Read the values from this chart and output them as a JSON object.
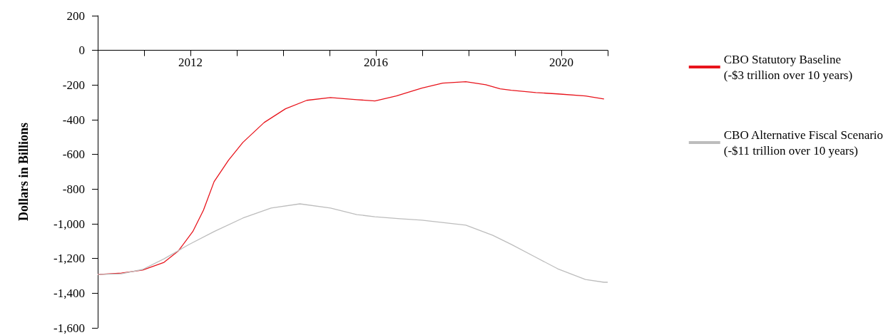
{
  "chart_data": {
    "type": "line",
    "ylabel": "Dollars in Billions",
    "xlim": [
      2010,
      2021
    ],
    "xticks": [
      {
        "value": 2010,
        "label": null
      },
      {
        "value": 2011,
        "label": null
      },
      2012,
      {
        "value": 2013,
        "label": null
      },
      {
        "value": 2014,
        "label": null
      },
      {
        "value": 2015,
        "label": null
      },
      2016,
      {
        "value": 2017,
        "label": null
      },
      {
        "value": 2018,
        "label": null
      },
      {
        "value": 2019,
        "label": null
      },
      2020,
      {
        "value": 2021,
        "label": null
      }
    ],
    "ylim": [
      -1600,
      200
    ],
    "yticks": [
      {
        "value": -1600,
        "label": "-1,600"
      },
      {
        "value": -1400,
        "label": "-1,400"
      },
      {
        "value": -1200,
        "label": "-1,200"
      },
      {
        "value": -1000,
        "label": "-1,000"
      },
      -800,
      -600,
      -400,
      -200,
      0,
      200
    ],
    "grid": false,
    "legend": "right",
    "marker": "none",
    "line_style": "solid",
    "series": [
      {
        "name": "CBO Statutory Baseline\n(-$3 trillion over 10 years)",
        "color": "#e8141c",
        "x": [
          2010.0,
          2010.51,
          2010.97,
          2011.43,
          2011.74,
          2012.05,
          2012.28,
          2012.51,
          2012.82,
          2013.13,
          2013.59,
          2014.05,
          2014.51,
          2015.02,
          2015.59,
          2015.98,
          2016.44,
          2016.99,
          2017.44,
          2017.94,
          2018.37,
          2018.68,
          2018.92,
          2019.45,
          2019.92,
          2020.52,
          2020.92
        ],
        "values": [
          -1292,
          -1284,
          -1267,
          -1222,
          -1156,
          -1045,
          -922,
          -757,
          -634,
          -531,
          -416,
          -337,
          -288,
          -272,
          -284,
          -292,
          -263,
          -218,
          -189,
          -181,
          -198,
          -222,
          -230,
          -243,
          -251,
          -263,
          -280
        ]
      },
      {
        "name": "CBO Alternative Fiscal Scenario\n(-$11 trillion over 10 years)",
        "color": "#bdbdbd",
        "x": [
          2010.0,
          2010.51,
          2010.97,
          2011.43,
          2011.97,
          2012.51,
          2013.13,
          2013.74,
          2014.36,
          2015.02,
          2015.59,
          2015.98,
          2016.52,
          2016.99,
          2017.94,
          2018.52,
          2018.92,
          2019.45,
          2019.92,
          2020.52,
          2020.92,
          2021.0
        ],
        "values": [
          -1292,
          -1288,
          -1263,
          -1202,
          -1119,
          -1045,
          -967,
          -909,
          -885,
          -909,
          -947,
          -959,
          -971,
          -979,
          -1008,
          -1066,
          -1119,
          -1193,
          -1259,
          -1321,
          -1337,
          -1337
        ]
      }
    ]
  }
}
